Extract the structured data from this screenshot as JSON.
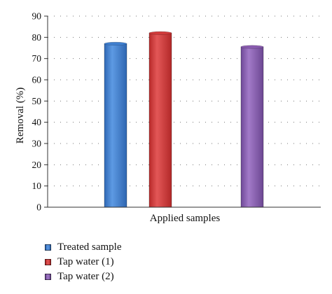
{
  "chart_data": {
    "type": "bar",
    "title": "",
    "xlabel": "Applied samples",
    "ylabel": "Removal (%)",
    "ylim": [
      0,
      90
    ],
    "yticks": [
      "0",
      "10",
      "20",
      "30",
      "40",
      "50",
      "60",
      "70",
      "80",
      "90"
    ],
    "grid": true,
    "legend_position": "bottom-left",
    "series": [
      {
        "name": "Treated sample",
        "value": 77,
        "color": "#3f7fcf"
      },
      {
        "name": "Tap water (1)",
        "value": 82,
        "color": "#d13a3a"
      },
      {
        "name": "Tap water (2)",
        "value": 75.5,
        "color": "#8a5cb0"
      }
    ]
  }
}
